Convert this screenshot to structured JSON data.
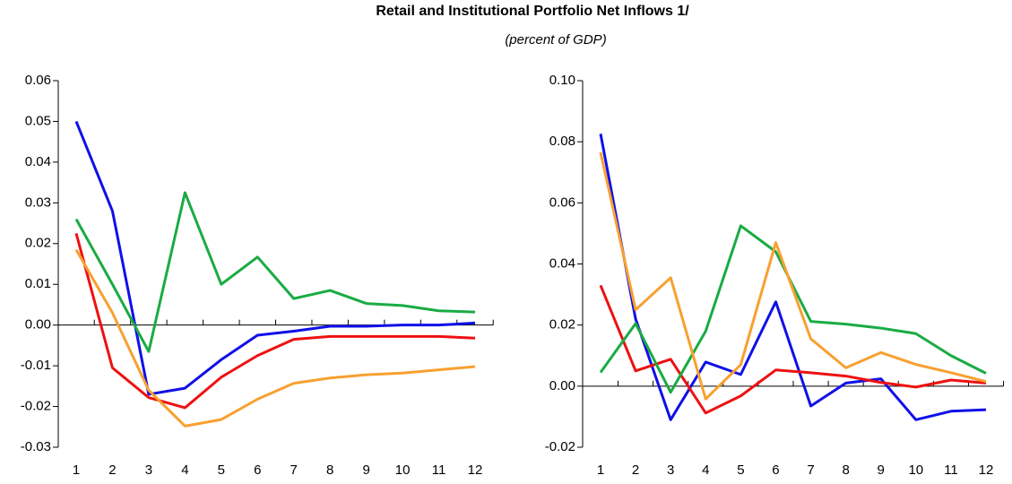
{
  "header": {
    "title": "Retail and Institutional  Portfolio Net Inflows 1/",
    "subtitle": "(percent of GDP)"
  },
  "chart_data": [
    {
      "type": "line",
      "categories": [
        "1",
        "2",
        "3",
        "4",
        "5",
        "6",
        "7",
        "8",
        "9",
        "10",
        "11",
        "12"
      ],
      "ylim": [
        -0.03,
        0.06
      ],
      "yticks": [
        -0.03,
        -0.02,
        -0.01,
        {
          "value": 0,
          "label": "0.00"
        },
        0.01,
        0.02,
        0.03,
        0.04,
        0.05,
        0.06
      ],
      "series": [
        {
          "color": "#1010e8",
          "values": [
            0.05,
            0.028,
            -0.017,
            -0.0155,
            -0.0085,
            -0.0025,
            -0.0015,
            -0.0003,
            -0.0003,
            0.0,
            0.0,
            0.0005
          ]
        },
        {
          "color": "#1aab44",
          "values": [
            0.026,
            0.01,
            -0.0065,
            0.0325,
            0.01,
            0.0167,
            0.0065,
            0.0085,
            0.0053,
            0.0048,
            0.0035,
            0.0032
          ]
        },
        {
          "color": "#ee1111",
          "values": [
            0.0225,
            -0.0105,
            -0.0178,
            -0.0203,
            -0.0128,
            -0.0075,
            -0.0035,
            -0.0028,
            -0.0028,
            -0.0028,
            -0.0028,
            -0.0032
          ]
        },
        {
          "color": "#f8a030",
          "values": [
            0.0185,
            0.003,
            -0.016,
            -0.0248,
            -0.0232,
            -0.0182,
            -0.0143,
            -0.013,
            -0.0122,
            -0.0118,
            -0.011,
            -0.0102
          ]
        }
      ]
    },
    {
      "type": "line",
      "categories": [
        "1",
        "2",
        "3",
        "4",
        "5",
        "6",
        "7",
        "8",
        "9",
        "10",
        "11",
        "12"
      ],
      "ylim": [
        -0.02,
        0.1
      ],
      "yticks": [
        -0.02,
        {
          "value": 0,
          "label": "0.00"
        },
        0.02,
        0.04,
        0.06,
        0.08,
        {
          "value": 0.1,
          "label": "0.10"
        }
      ],
      "series": [
        {
          "color": "#1010e8",
          "values": [
            0.0826,
            0.022,
            -0.011,
            0.0079,
            0.0038,
            0.0276,
            -0.0065,
            0.001,
            0.0024,
            -0.011,
            -0.0082,
            -0.0077
          ]
        },
        {
          "color": "#ee1111",
          "values": [
            0.033,
            0.005,
            0.0088,
            -0.0088,
            -0.0032,
            0.0053,
            0.0044,
            0.0033,
            0.0012,
            -0.0003,
            0.002,
            0.001
          ]
        },
        {
          "color": "#1aab44",
          "values": [
            0.0045,
            0.0205,
            -0.002,
            0.018,
            0.0525,
            0.044,
            0.0212,
            0.0203,
            0.019,
            0.0172,
            0.01,
            0.0042
          ]
        },
        {
          "color": "#f8a030",
          "values": [
            0.0765,
            0.025,
            0.0355,
            -0.0042,
            0.007,
            0.047,
            0.0155,
            0.006,
            0.011,
            0.0071,
            0.0044,
            0.0015
          ]
        }
      ]
    }
  ]
}
